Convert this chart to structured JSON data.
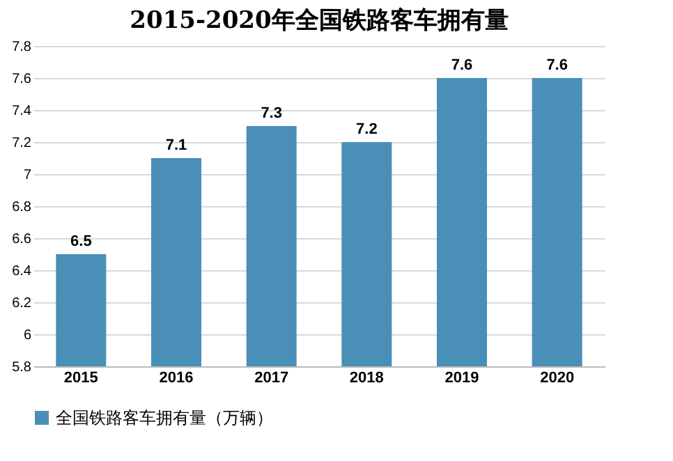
{
  "chart_data": {
    "type": "bar",
    "title": "2015-2020年全国铁路客车拥有量",
    "categories": [
      "2015",
      "2016",
      "2017",
      "2018",
      "2019",
      "2020"
    ],
    "series": [
      {
        "name": "全国铁路客车拥有量（万辆）",
        "color": "#4a8fb7",
        "values": [
          6.5,
          7.1,
          7.3,
          7.2,
          7.6,
          7.6
        ]
      }
    ],
    "ylim": [
      5.8,
      7.8
    ],
    "yticks": [
      5.8,
      6,
      6.2,
      6.4,
      6.6,
      6.8,
      7,
      7.2,
      7.4,
      7.6,
      7.8
    ],
    "grid": "y",
    "legend": "bottom",
    "data_labels": true
  }
}
